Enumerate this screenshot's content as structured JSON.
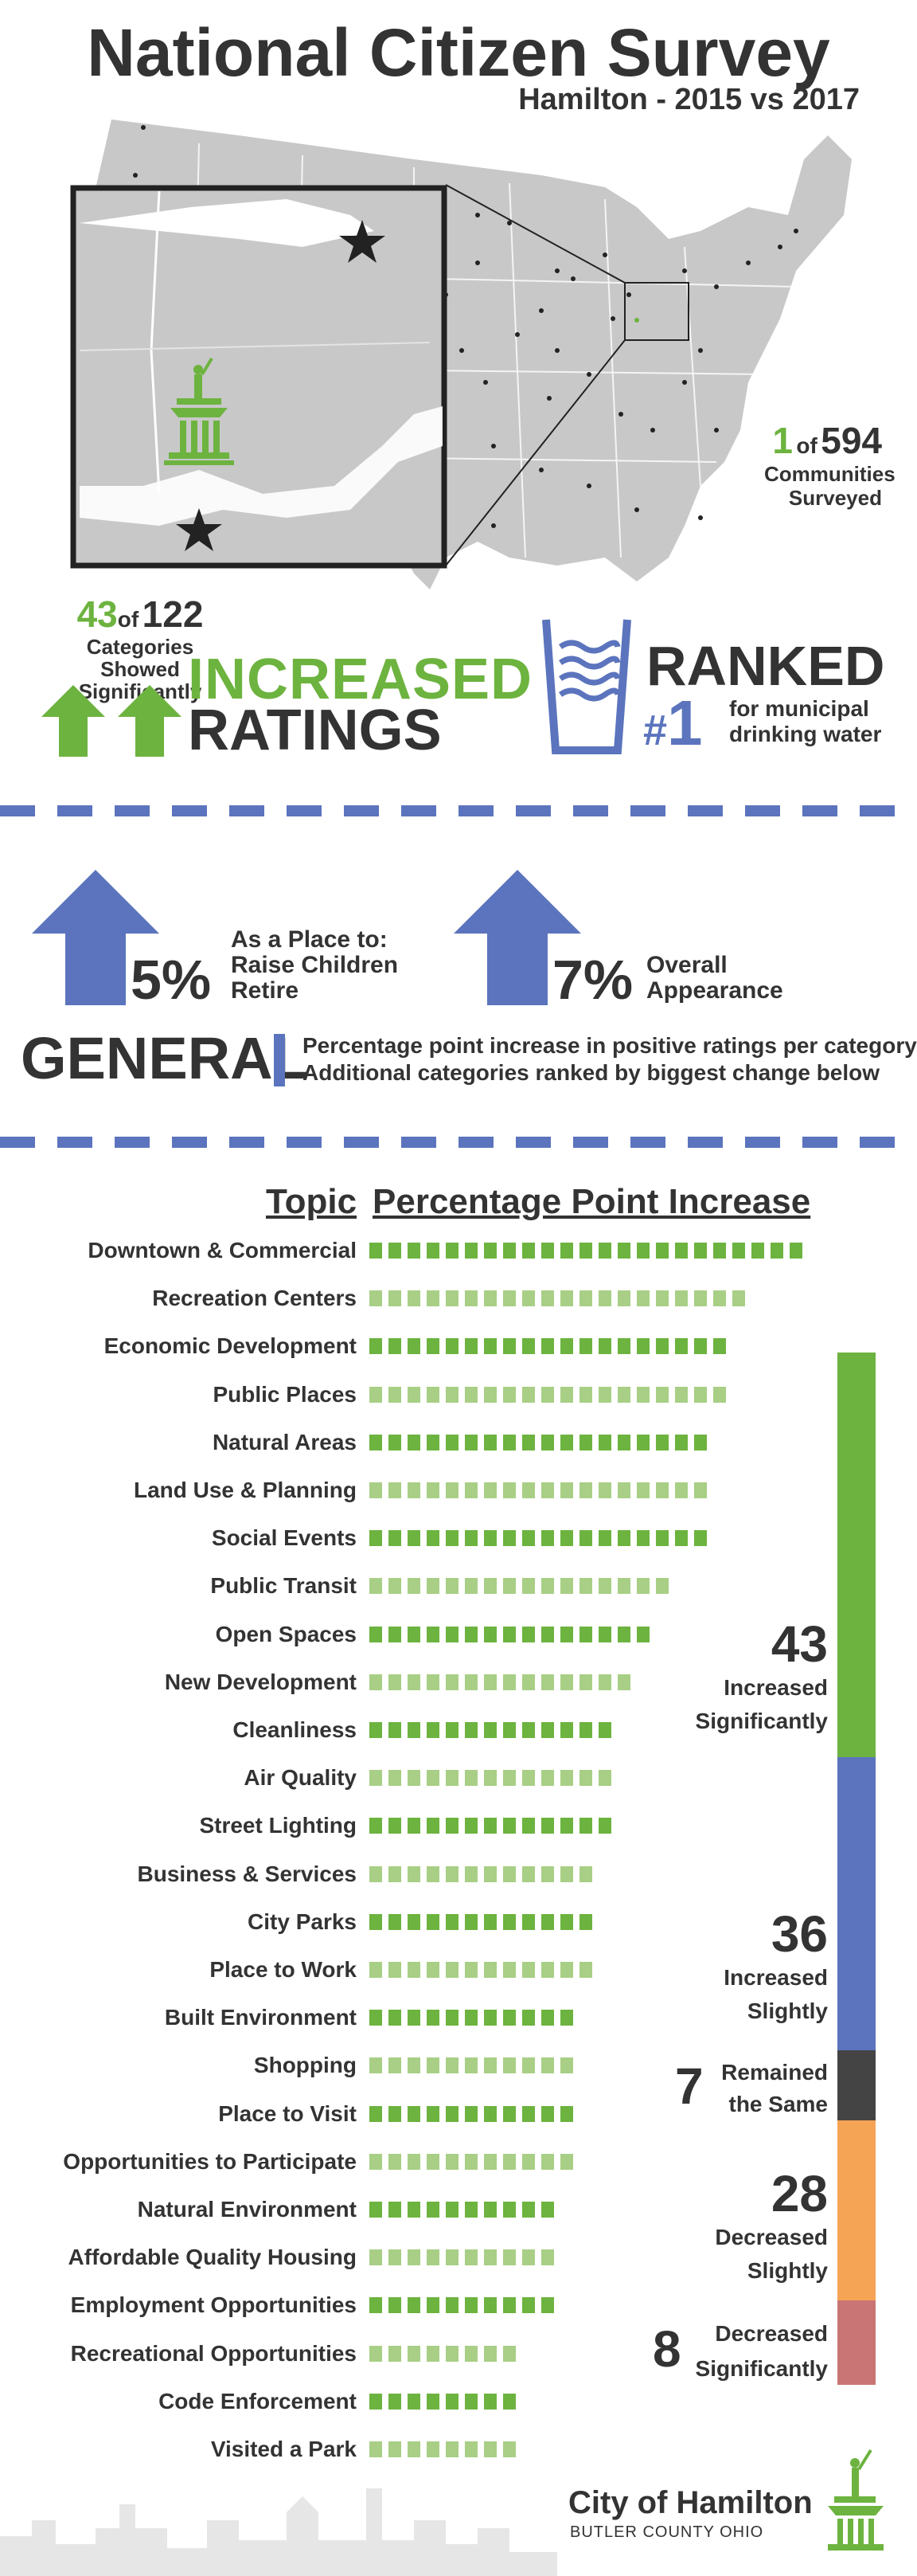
{
  "header": {
    "title": "National Citizen Survey",
    "subtitle": "Hamilton - 2015 vs 2017"
  },
  "rank_communities": {
    "number": "1",
    "of": "of",
    "total": "594",
    "line1": "Communities",
    "line2": "Surveyed"
  },
  "categories_increased": {
    "number": "43",
    "of": "of",
    "total": "122",
    "line1": "Categories Showed",
    "line2": "Significantly",
    "word1": "INCREASED",
    "word2": "RATINGS"
  },
  "ranked_water": {
    "ranked": "RANKED",
    "hash": "#",
    "number": "1",
    "line1": "for municipal",
    "line2": "drinking water"
  },
  "general": {
    "stat1": {
      "value": "5%",
      "line1": "As a Place to:",
      "line2": "Raise Children",
      "line3": "Retire"
    },
    "stat2": {
      "value": "7%",
      "line1": "Overall",
      "line2": "Appearance"
    },
    "label": "GENERAL",
    "note1": "Percentage point increase in positive ratings per category",
    "note2": "Additional categories ranked by biggest change below"
  },
  "table": {
    "header_topic": "Topic",
    "header_increase": "Percentage Point Increase",
    "rows": [
      {
        "topic": "Downtown & Commercial",
        "blocks": 23,
        "shade": "dark"
      },
      {
        "topic": "Recreation Centers",
        "blocks": 20,
        "shade": "light"
      },
      {
        "topic": "Economic Development",
        "blocks": 19,
        "shade": "dark"
      },
      {
        "topic": "Public Places",
        "blocks": 19,
        "shade": "light"
      },
      {
        "topic": "Natural Areas",
        "blocks": 18,
        "shade": "dark"
      },
      {
        "topic": "Land Use & Planning",
        "blocks": 18,
        "shade": "light"
      },
      {
        "topic": "Social Events",
        "blocks": 18,
        "shade": "dark"
      },
      {
        "topic": "Public Transit",
        "blocks": 16,
        "shade": "light"
      },
      {
        "topic": "Open Spaces",
        "blocks": 15,
        "shade": "dark"
      },
      {
        "topic": "New Development",
        "blocks": 14,
        "shade": "light"
      },
      {
        "topic": "Cleanliness",
        "blocks": 13,
        "shade": "dark"
      },
      {
        "topic": "Air Quality",
        "blocks": 13,
        "shade": "light"
      },
      {
        "topic": "Street Lighting",
        "blocks": 13,
        "shade": "dark"
      },
      {
        "topic": "Business & Services",
        "blocks": 12,
        "shade": "light"
      },
      {
        "topic": "City Parks",
        "blocks": 12,
        "shade": "dark"
      },
      {
        "topic": "Place to Work",
        "blocks": 12,
        "shade": "light"
      },
      {
        "topic": "Built Environment",
        "blocks": 11,
        "shade": "dark"
      },
      {
        "topic": "Shopping",
        "blocks": 11,
        "shade": "light"
      },
      {
        "topic": "Place to Visit",
        "blocks": 11,
        "shade": "dark"
      },
      {
        "topic": "Opportunities to Participate",
        "blocks": 11,
        "shade": "light"
      },
      {
        "topic": "Natural Environment",
        "blocks": 10,
        "shade": "dark"
      },
      {
        "topic": "Affordable Quality Housing",
        "blocks": 10,
        "shade": "light"
      },
      {
        "topic": "Employment Opportunities",
        "blocks": 10,
        "shade": "dark"
      },
      {
        "topic": "Recreational Opportunities",
        "blocks": 8,
        "shade": "light"
      },
      {
        "topic": "Code Enforcement",
        "blocks": 8,
        "shade": "dark"
      },
      {
        "topic": "Visited a Park",
        "blocks": 8,
        "shade": "light"
      }
    ]
  },
  "summary": {
    "increased_sig": {
      "number": "43",
      "line1": "Increased",
      "line2": "Significantly"
    },
    "increased_slight": {
      "number": "36",
      "line1": "Increased",
      "line2": "Slightly"
    },
    "same": {
      "number": "7",
      "line1": "Remained",
      "line2": "the Same"
    },
    "decreased_slight": {
      "number": "28",
      "line1": "Decreased",
      "line2": "Slightly"
    },
    "decreased_sig": {
      "number": "8",
      "line1": "Decreased",
      "line2": "Significantly"
    }
  },
  "colors": {
    "green": "#6db33f",
    "light_green": "#a8cf85",
    "blue": "#5b74bd",
    "dark_gray": "#444444",
    "orange": "#f5a455",
    "rose": "#c97575",
    "text": "#333333",
    "map_gray": "#c8c8c8"
  },
  "footer": {
    "city": "City of Hamilton",
    "county": "BUTLER COUNTY OHIO"
  },
  "icons": [
    "usa-map",
    "star-icon",
    "statue-icon",
    "water-glass-icon",
    "up-arrow-icon",
    "city-skyline"
  ]
}
